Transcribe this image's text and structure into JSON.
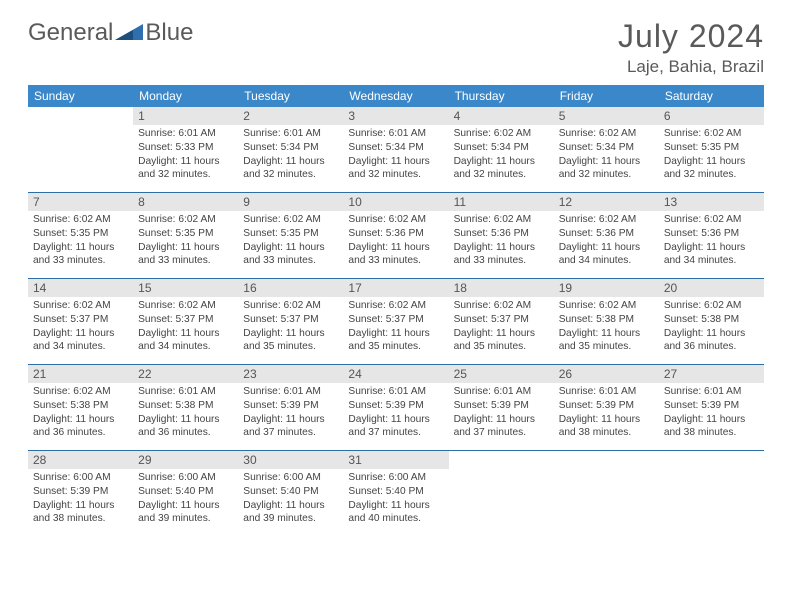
{
  "brand": {
    "part1": "General",
    "part2": "Blue"
  },
  "title": "July 2024",
  "location": "Laje, Bahia, Brazil",
  "colors": {
    "header_bg": "#3a87c9",
    "header_text": "#ffffff",
    "daynum_bg": "#e6e6e6",
    "row_border": "#2c6ea8",
    "text": "#444444",
    "title_color": "#5a5a5a",
    "logo_accent": "#2f6fb0"
  },
  "layout": {
    "columns": 7,
    "first_weekday_offset": 1,
    "days_in_month": 31
  },
  "weekdays": [
    "Sunday",
    "Monday",
    "Tuesday",
    "Wednesday",
    "Thursday",
    "Friday",
    "Saturday"
  ],
  "days": [
    {
      "n": 1,
      "sunrise": "6:01 AM",
      "sunset": "5:33 PM",
      "daylight": "11 hours and 32 minutes."
    },
    {
      "n": 2,
      "sunrise": "6:01 AM",
      "sunset": "5:34 PM",
      "daylight": "11 hours and 32 minutes."
    },
    {
      "n": 3,
      "sunrise": "6:01 AM",
      "sunset": "5:34 PM",
      "daylight": "11 hours and 32 minutes."
    },
    {
      "n": 4,
      "sunrise": "6:02 AM",
      "sunset": "5:34 PM",
      "daylight": "11 hours and 32 minutes."
    },
    {
      "n": 5,
      "sunrise": "6:02 AM",
      "sunset": "5:34 PM",
      "daylight": "11 hours and 32 minutes."
    },
    {
      "n": 6,
      "sunrise": "6:02 AM",
      "sunset": "5:35 PM",
      "daylight": "11 hours and 32 minutes."
    },
    {
      "n": 7,
      "sunrise": "6:02 AM",
      "sunset": "5:35 PM",
      "daylight": "11 hours and 33 minutes."
    },
    {
      "n": 8,
      "sunrise": "6:02 AM",
      "sunset": "5:35 PM",
      "daylight": "11 hours and 33 minutes."
    },
    {
      "n": 9,
      "sunrise": "6:02 AM",
      "sunset": "5:35 PM",
      "daylight": "11 hours and 33 minutes."
    },
    {
      "n": 10,
      "sunrise": "6:02 AM",
      "sunset": "5:36 PM",
      "daylight": "11 hours and 33 minutes."
    },
    {
      "n": 11,
      "sunrise": "6:02 AM",
      "sunset": "5:36 PM",
      "daylight": "11 hours and 33 minutes."
    },
    {
      "n": 12,
      "sunrise": "6:02 AM",
      "sunset": "5:36 PM",
      "daylight": "11 hours and 34 minutes."
    },
    {
      "n": 13,
      "sunrise": "6:02 AM",
      "sunset": "5:36 PM",
      "daylight": "11 hours and 34 minutes."
    },
    {
      "n": 14,
      "sunrise": "6:02 AM",
      "sunset": "5:37 PM",
      "daylight": "11 hours and 34 minutes."
    },
    {
      "n": 15,
      "sunrise": "6:02 AM",
      "sunset": "5:37 PM",
      "daylight": "11 hours and 34 minutes."
    },
    {
      "n": 16,
      "sunrise": "6:02 AM",
      "sunset": "5:37 PM",
      "daylight": "11 hours and 35 minutes."
    },
    {
      "n": 17,
      "sunrise": "6:02 AM",
      "sunset": "5:37 PM",
      "daylight": "11 hours and 35 minutes."
    },
    {
      "n": 18,
      "sunrise": "6:02 AM",
      "sunset": "5:37 PM",
      "daylight": "11 hours and 35 minutes."
    },
    {
      "n": 19,
      "sunrise": "6:02 AM",
      "sunset": "5:38 PM",
      "daylight": "11 hours and 35 minutes."
    },
    {
      "n": 20,
      "sunrise": "6:02 AM",
      "sunset": "5:38 PM",
      "daylight": "11 hours and 36 minutes."
    },
    {
      "n": 21,
      "sunrise": "6:02 AM",
      "sunset": "5:38 PM",
      "daylight": "11 hours and 36 minutes."
    },
    {
      "n": 22,
      "sunrise": "6:01 AM",
      "sunset": "5:38 PM",
      "daylight": "11 hours and 36 minutes."
    },
    {
      "n": 23,
      "sunrise": "6:01 AM",
      "sunset": "5:39 PM",
      "daylight": "11 hours and 37 minutes."
    },
    {
      "n": 24,
      "sunrise": "6:01 AM",
      "sunset": "5:39 PM",
      "daylight": "11 hours and 37 minutes."
    },
    {
      "n": 25,
      "sunrise": "6:01 AM",
      "sunset": "5:39 PM",
      "daylight": "11 hours and 37 minutes."
    },
    {
      "n": 26,
      "sunrise": "6:01 AM",
      "sunset": "5:39 PM",
      "daylight": "11 hours and 38 minutes."
    },
    {
      "n": 27,
      "sunrise": "6:01 AM",
      "sunset": "5:39 PM",
      "daylight": "11 hours and 38 minutes."
    },
    {
      "n": 28,
      "sunrise": "6:00 AM",
      "sunset": "5:39 PM",
      "daylight": "11 hours and 38 minutes."
    },
    {
      "n": 29,
      "sunrise": "6:00 AM",
      "sunset": "5:40 PM",
      "daylight": "11 hours and 39 minutes."
    },
    {
      "n": 30,
      "sunrise": "6:00 AM",
      "sunset": "5:40 PM",
      "daylight": "11 hours and 39 minutes."
    },
    {
      "n": 31,
      "sunrise": "6:00 AM",
      "sunset": "5:40 PM",
      "daylight": "11 hours and 40 minutes."
    }
  ],
  "labels": {
    "sunrise": "Sunrise:",
    "sunset": "Sunset:",
    "daylight": "Daylight:"
  }
}
